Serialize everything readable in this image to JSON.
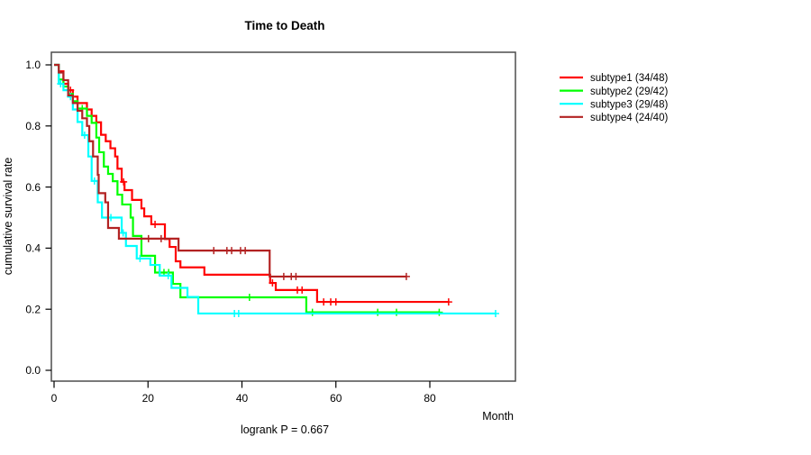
{
  "chart_data": {
    "type": "line",
    "chart_style": "kaplan-meier-survival-step",
    "title": "Time to Death",
    "xlabel": "Month",
    "ylabel": "cumulative survival rate",
    "annotation": "logrank P = 0.667",
    "xlim": [
      0,
      98
    ],
    "ylim": [
      0,
      1.0
    ],
    "x_ticks": [
      0,
      20,
      40,
      60,
      80
    ],
    "y_ticks": [
      0,
      0.2,
      0.4,
      0.6,
      0.8,
      1
    ],
    "grid": false,
    "legend_position": "right-outside-top",
    "series": [
      {
        "name": "subtype1",
        "label": "subtype1 (34/48)",
        "color": "#FF0000",
        "start": [
          0,
          1.0
        ],
        "steps": [
          [
            1,
            0.979
          ],
          [
            2,
            0.938
          ],
          [
            3,
            0.917
          ],
          [
            4,
            0.896
          ],
          [
            5,
            0.875
          ],
          [
            7,
            0.854
          ],
          [
            8,
            0.833
          ],
          [
            9,
            0.812
          ],
          [
            10,
            0.771
          ],
          [
            11,
            0.75
          ],
          [
            12,
            0.727
          ],
          [
            13,
            0.7
          ],
          [
            13.5,
            0.66
          ],
          [
            14.4,
            0.617
          ],
          [
            15,
            0.59
          ],
          [
            16.6,
            0.558
          ],
          [
            18.6,
            0.53
          ],
          [
            19.2,
            0.504
          ],
          [
            20.7,
            0.478
          ],
          [
            23.6,
            0.43
          ],
          [
            24.6,
            0.404
          ],
          [
            25.9,
            0.357
          ],
          [
            26.9,
            0.337
          ],
          [
            32,
            0.313
          ],
          [
            46,
            0.286
          ],
          [
            47.2,
            0.263
          ],
          [
            56,
            0.224
          ]
        ],
        "end_time": 84,
        "censors": [
          [
            3.5,
            0.917
          ],
          [
            14.8,
            0.617
          ],
          [
            21.5,
            0.478
          ],
          [
            46.5,
            0.286
          ],
          [
            51.8,
            0.263
          ],
          [
            52.8,
            0.263
          ],
          [
            57.4,
            0.224
          ],
          [
            58.9,
            0.224
          ],
          [
            60,
            0.224
          ],
          [
            84,
            0.224
          ]
        ]
      },
      {
        "name": "subtype2",
        "label": "subtype2 (29/42)",
        "color": "#00FF00",
        "start": [
          0,
          1.0
        ],
        "steps": [
          [
            1,
            0.952
          ],
          [
            2,
            0.929
          ],
          [
            3,
            0.905
          ],
          [
            4,
            0.881
          ],
          [
            5,
            0.857
          ],
          [
            7,
            0.833
          ],
          [
            8,
            0.81
          ],
          [
            9,
            0.762
          ],
          [
            9.6,
            0.714
          ],
          [
            10.6,
            0.667
          ],
          [
            11.5,
            0.643
          ],
          [
            12.5,
            0.619
          ],
          [
            13.5,
            0.575
          ],
          [
            14.5,
            0.543
          ],
          [
            16.3,
            0.5
          ],
          [
            16.8,
            0.44
          ],
          [
            18.6,
            0.375
          ],
          [
            21.5,
            0.32
          ],
          [
            25.3,
            0.283
          ],
          [
            26.9,
            0.239
          ],
          [
            53.7,
            0.19
          ]
        ],
        "end_time": 82,
        "censors": [
          [
            6,
            0.857
          ],
          [
            22.4,
            0.32
          ],
          [
            23.4,
            0.32
          ],
          [
            24.4,
            0.32
          ],
          [
            41.6,
            0.239
          ],
          [
            55,
            0.19
          ],
          [
            68.9,
            0.19
          ],
          [
            72.9,
            0.19
          ],
          [
            82,
            0.19
          ]
        ]
      },
      {
        "name": "subtype3",
        "label": "subtype3 (29/48)",
        "color": "#00FFFF",
        "start": [
          0,
          1.0
        ],
        "steps": [
          [
            1,
            0.938
          ],
          [
            2,
            0.917
          ],
          [
            3,
            0.896
          ],
          [
            4,
            0.854
          ],
          [
            5,
            0.813
          ],
          [
            6,
            0.77
          ],
          [
            7.3,
            0.7
          ],
          [
            8,
            0.62
          ],
          [
            9.3,
            0.55
          ],
          [
            10.2,
            0.5
          ],
          [
            14.4,
            0.45
          ],
          [
            15.3,
            0.407
          ],
          [
            17.6,
            0.366
          ],
          [
            20.5,
            0.345
          ],
          [
            22.5,
            0.31
          ],
          [
            25,
            0.27
          ],
          [
            28.4,
            0.24
          ],
          [
            30.7,
            0.186
          ]
        ],
        "end_time": 94,
        "censors": [
          [
            1.4,
            0.938
          ],
          [
            3.5,
            0.896
          ],
          [
            6.5,
            0.77
          ],
          [
            8.6,
            0.62
          ],
          [
            12.1,
            0.5
          ],
          [
            14.7,
            0.45
          ],
          [
            18.3,
            0.366
          ],
          [
            24.3,
            0.31
          ],
          [
            38.4,
            0.186
          ],
          [
            39.3,
            0.186
          ],
          [
            94,
            0.186
          ]
        ]
      },
      {
        "name": "subtype4",
        "label": "subtype4 (24/40)",
        "color": "#B22222",
        "start": [
          0,
          1.0
        ],
        "steps": [
          [
            1,
            0.975
          ],
          [
            2,
            0.95
          ],
          [
            3,
            0.9
          ],
          [
            4,
            0.875
          ],
          [
            5,
            0.85
          ],
          [
            6,
            0.825
          ],
          [
            7,
            0.8
          ],
          [
            7.5,
            0.75
          ],
          [
            8.3,
            0.7
          ],
          [
            9.3,
            0.64
          ],
          [
            9.5,
            0.58
          ],
          [
            10.9,
            0.55
          ],
          [
            11.5,
            0.466
          ],
          [
            13.8,
            0.431
          ],
          [
            26.5,
            0.392
          ],
          [
            45.9,
            0.307
          ]
        ],
        "end_time": 75,
        "censors": [
          [
            20.1,
            0.431
          ],
          [
            22.8,
            0.431
          ],
          [
            34,
            0.392
          ],
          [
            36.8,
            0.392
          ],
          [
            37.8,
            0.392
          ],
          [
            39.7,
            0.392
          ],
          [
            40.7,
            0.392
          ],
          [
            48.9,
            0.307
          ],
          [
            50.5,
            0.307
          ],
          [
            51.5,
            0.307
          ],
          [
            75,
            0.307
          ]
        ]
      }
    ]
  }
}
